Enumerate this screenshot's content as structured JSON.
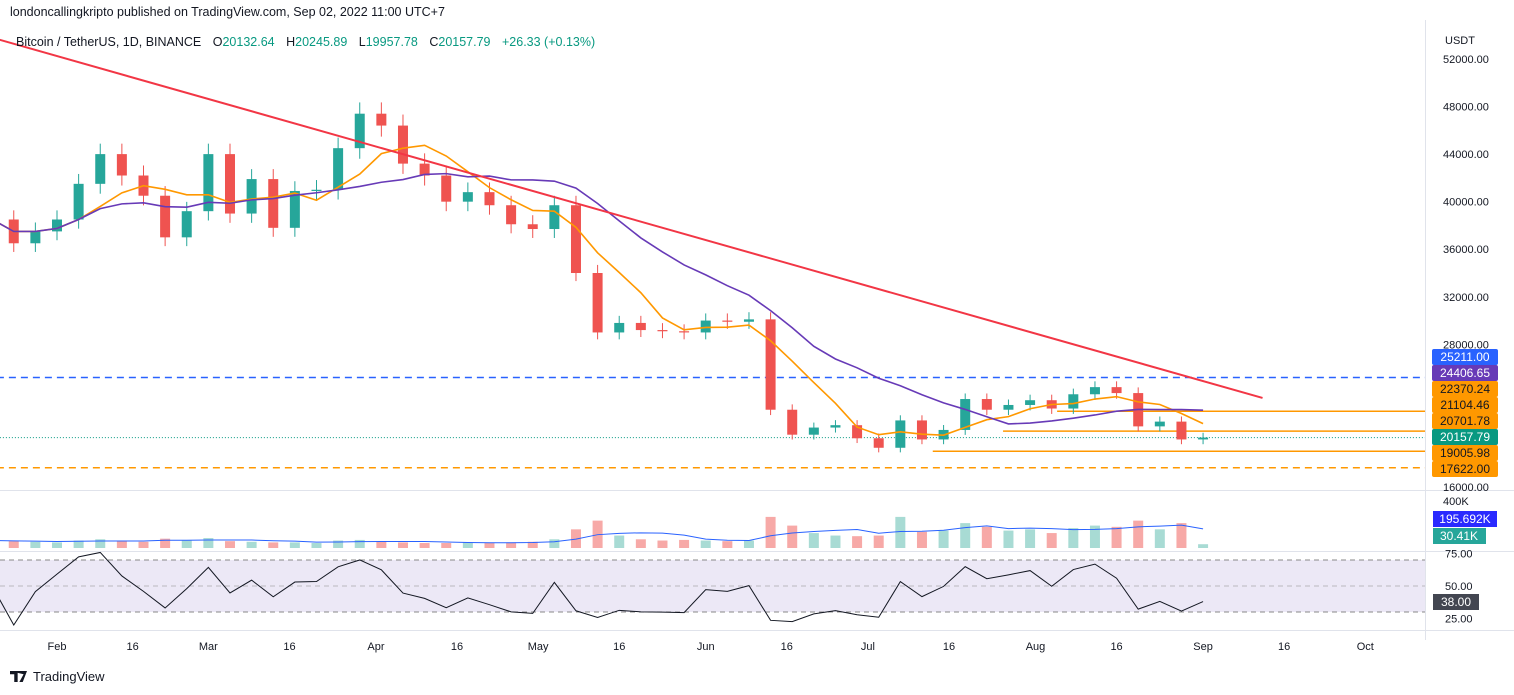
{
  "header": {
    "published": "londoncallingkripto published on TradingView.com, Sep 02, 2022 11:00 UTC+7",
    "symbol": "Bitcoin / TetherUS, 1D, BINANCE",
    "o_label": "O",
    "open": "20132.64",
    "h_label": "H",
    "high": "20245.89",
    "l_label": "L",
    "low": "19957.78",
    "c_label": "C",
    "close": "20157.79",
    "change": "+26.33 (+0.13%)"
  },
  "footer": {
    "brand": "TradingView"
  },
  "colors": {
    "up": "#26a69a",
    "down": "#ef5350",
    "ma_fast": "#ff9800",
    "ma_slow": "#673ab7",
    "trend": "#f23645",
    "support_blue": "#2962ff",
    "support_orange": "#ff9800"
  },
  "chart_data": {
    "type": "candlestick",
    "currency": "USDT",
    "sample_interval_days": 4,
    "first_sample_day_offset_from_feb1": -12,
    "closes": [
      38500,
      36500,
      37500,
      38500,
      41500,
      44000,
      42200,
      40500,
      37000,
      39200,
      44000,
      39000,
      41900,
      37800,
      40900,
      41000,
      44500,
      47400,
      46400,
      43200,
      42200,
      40000,
      40800,
      39700,
      38100,
      37700,
      39700,
      34000,
      29000,
      29800,
      29200,
      29100,
      29000,
      30000,
      29900,
      30100,
      22500,
      20400,
      21000,
      21200,
      20100,
      19300,
      21600,
      20000,
      20800,
      23400,
      22500,
      22900,
      23300,
      22600,
      23800,
      24400,
      23900,
      21100,
      21500,
      20000,
      20157.79
    ],
    "volumes_k": [
      60,
      55,
      50,
      45,
      60,
      70,
      55,
      50,
      75,
      60,
      80,
      55,
      50,
      45,
      45,
      40,
      60,
      65,
      50,
      45,
      40,
      40,
      45,
      40,
      45,
      50,
      70,
      150,
      220,
      100,
      70,
      60,
      65,
      60,
      55,
      60,
      250,
      180,
      120,
      100,
      95,
      100,
      250,
      130,
      140,
      200,
      170,
      140,
      150,
      120,
      160,
      180,
      170,
      220,
      150,
      200,
      30.41
    ],
    "ylim": [
      16000,
      52000
    ],
    "y_ticks": [
      "52000.00",
      "48000.00",
      "44000.00",
      "40000.00",
      "36000.00",
      "32000.00",
      "28000.00",
      "16000.00"
    ],
    "x_ticks": [
      {
        "label": "Feb",
        "day": 0
      },
      {
        "label": "Mar",
        "day": 28
      },
      {
        "label": "Apr",
        "day": 59
      },
      {
        "label": "16",
        "day": 74
      },
      {
        "label": "May",
        "day": 89
      },
      {
        "label": "16",
        "day": 104
      },
      {
        "label": "Jun",
        "day": 120
      },
      {
        "label": "16",
        "day": 135
      },
      {
        "label": "Jul",
        "day": 150
      },
      {
        "label": "16",
        "day": 165
      },
      {
        "label": "Aug",
        "day": 181
      },
      {
        "label": "16",
        "day": 196
      },
      {
        "label": "Sep",
        "day": 212
      },
      {
        "label": "16",
        "day": 227
      },
      {
        "label": "Oct",
        "day": 242
      },
      {
        "label": "16",
        "day": 14
      },
      {
        "label": "16",
        "day": 43
      }
    ],
    "trendline": {
      "from": {
        "day": -17,
        "price": 54440
      },
      "to": {
        "day": 223,
        "price": 23490
      }
    },
    "levels": [
      {
        "price": 25211.0,
        "label": "25211.00",
        "style": "dashed",
        "color": "#2962ff",
        "from_day": -20,
        "bg": "#2962ff",
        "fg": "#fff"
      },
      {
        "price": 24406.65,
        "label": "24406.65",
        "style": "none",
        "color": "#673ab7",
        "bg": "#673ab7",
        "fg": "#fff"
      },
      {
        "price": 22370.24,
        "label": "22370.24",
        "style": "solid",
        "color": "#ff9800",
        "from_day": 185,
        "bg": "#ff9800",
        "fg": "#131722"
      },
      {
        "price": 21104.46,
        "label": "21104.46",
        "style": "none",
        "color": "#ff9800",
        "bg": "#ff9800",
        "fg": "#131722"
      },
      {
        "price": 20701.78,
        "label": "20701.78",
        "style": "solid",
        "color": "#ff9800",
        "from_day": 175,
        "bg": "#ff9800",
        "fg": "#131722"
      },
      {
        "price": 20157.79,
        "label": "20157.79",
        "style": "dotted",
        "color": "#089981",
        "from_day": -20,
        "bg": "#089981",
        "fg": "#fff"
      },
      {
        "price": 19005.98,
        "label": "19005.98",
        "style": "solid",
        "color": "#ff9800",
        "from_day": 162,
        "bg": "#ff9800",
        "fg": "#131722"
      },
      {
        "price": 17622.0,
        "label": "17622.00",
        "style": "dashed",
        "color": "#ff9800",
        "from_day": -20,
        "bg": "#ff9800",
        "fg": "#131722"
      }
    ],
    "volume": {
      "axis_label": "400K",
      "ma_label": "195.692K",
      "last_label": "30.41K",
      "max_k": 450
    },
    "rsi": {
      "ticks": [
        "75.00",
        "50.00",
        "25.00"
      ],
      "value_label": "38.00",
      "band": [
        30,
        70
      ]
    }
  }
}
